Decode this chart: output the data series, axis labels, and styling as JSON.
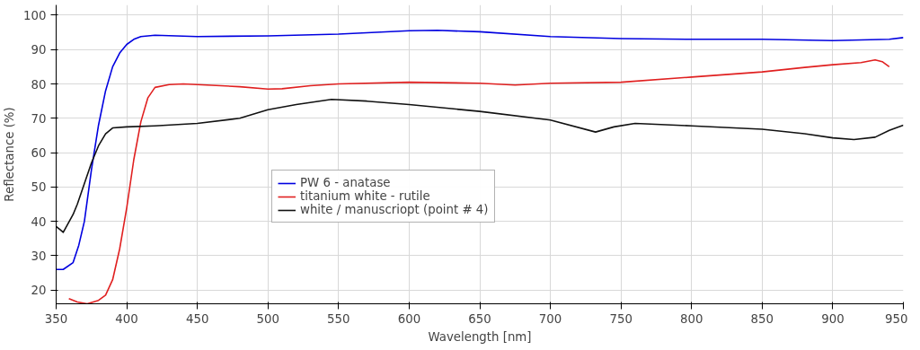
{
  "chart_data": {
    "type": "line",
    "xlabel": "Wavelength [nm]",
    "ylabel": "Reflectance (%)",
    "xlim": [
      350,
      950
    ],
    "ylim": [
      16,
      103
    ],
    "xticks": [
      350,
      400,
      450,
      500,
      550,
      600,
      650,
      700,
      750,
      800,
      850,
      900,
      950
    ],
    "yticks": [
      20,
      30,
      40,
      50,
      60,
      70,
      80,
      90,
      100
    ],
    "grid": true,
    "legend": "center",
    "marker": "none",
    "line_style": "solid",
    "series": [
      {
        "name": "PW 6 - anatase",
        "color": "#0000e0",
        "x": [
          350,
          355,
          362,
          366,
          370,
          375,
          380,
          385,
          390,
          395,
          400,
          405,
          410,
          420,
          450,
          500,
          550,
          600,
          620,
          650,
          700,
          750,
          800,
          850,
          900,
          920,
          940,
          950
        ],
        "values": [
          26,
          26,
          28,
          33,
          40,
          55,
          68,
          78,
          85,
          89,
          91.5,
          93,
          93.8,
          94.2,
          93.8,
          94,
          94.5,
          95.5,
          95.6,
          95.2,
          93.8,
          93.2,
          93,
          93,
          92.6,
          92.8,
          93,
          93.5
        ]
      },
      {
        "name": "titanium white - rutile",
        "color": "#e02020",
        "x": [
          359,
          365,
          372,
          380,
          385,
          390,
          395,
          400,
          405,
          410,
          415,
          420,
          430,
          440,
          460,
          480,
          500,
          510,
          530,
          550,
          600,
          650,
          675,
          700,
          750,
          800,
          850,
          880,
          890,
          900,
          920,
          930,
          935,
          940
        ],
        "values": [
          17.5,
          16.5,
          16,
          17,
          18.5,
          23,
          32,
          44,
          58,
          69,
          76,
          79,
          79.8,
          80,
          79.6,
          79.2,
          78.5,
          78.6,
          79.5,
          80,
          80.5,
          80.2,
          79.7,
          80.2,
          80.5,
          82,
          83.5,
          84.8,
          85.2,
          85.6,
          86.2,
          87,
          86.5,
          85
        ]
      },
      {
        "name": "white / manuscriopt (point # 4)",
        "color": "#111111",
        "x": [
          350,
          353,
          355,
          358,
          362,
          365,
          370,
          375,
          380,
          385,
          390,
          400,
          420,
          450,
          480,
          500,
          520,
          545,
          570,
          600,
          650,
          700,
          732,
          745,
          760,
          800,
          850,
          880,
          900,
          915,
          930,
          940,
          950
        ],
        "values": [
          38.5,
          37.5,
          36.8,
          39,
          42,
          45,
          51,
          57,
          62,
          65.5,
          67.2,
          67.5,
          67.8,
          68.5,
          70,
          72.5,
          74,
          75.5,
          75,
          74,
          72,
          69.5,
          66,
          67.5,
          68.5,
          67.8,
          66.8,
          65.5,
          64.3,
          63.8,
          64.5,
          66.5,
          68
        ]
      }
    ]
  }
}
